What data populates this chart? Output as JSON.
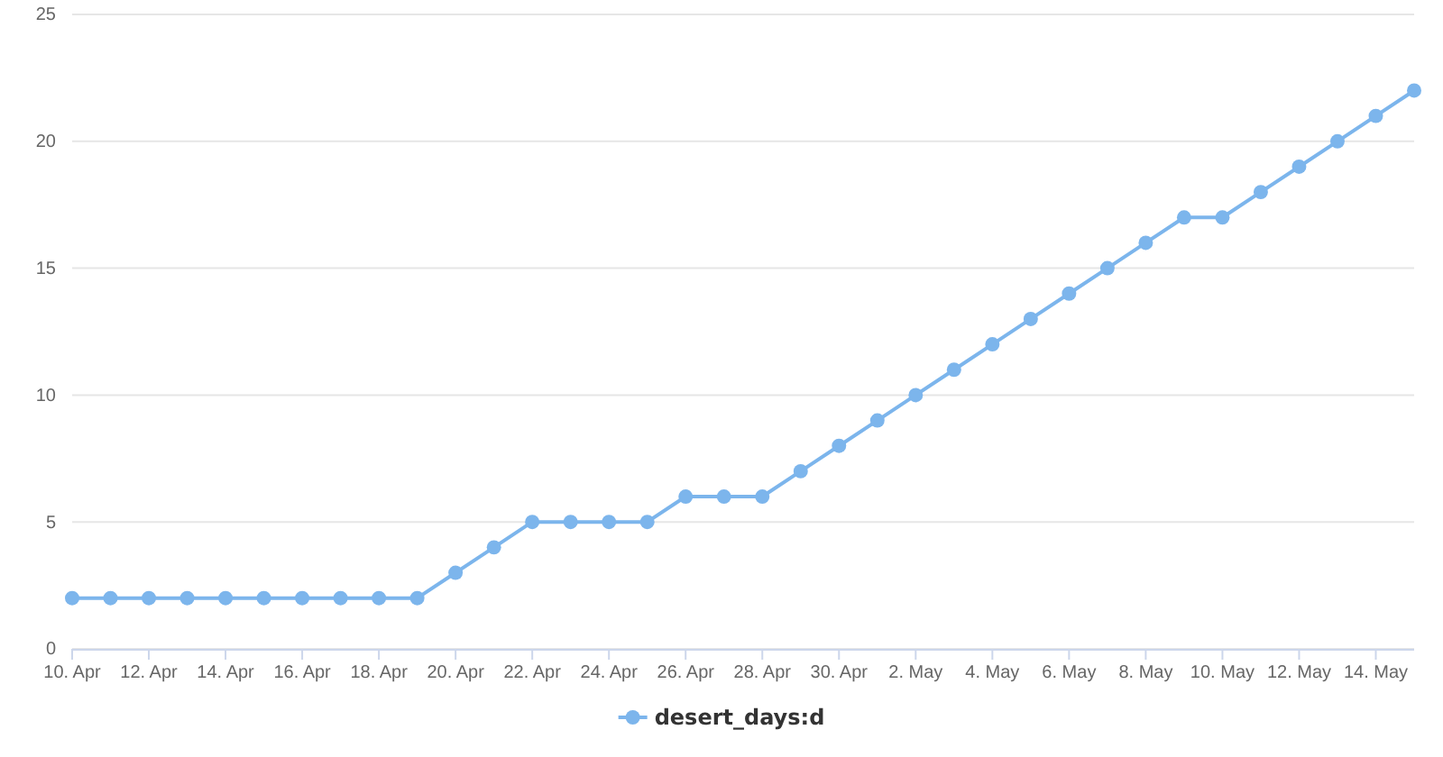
{
  "chart_data": {
    "type": "line",
    "x": [
      "--04-10",
      "--04-11",
      "--04-12",
      "--04-13",
      "--04-14",
      "--04-15",
      "--04-16",
      "--04-17",
      "--04-18",
      "--04-19",
      "--04-20",
      "--04-21",
      "--04-22",
      "--04-23",
      "--04-24",
      "--04-25",
      "--04-26",
      "--04-27",
      "--04-28",
      "--04-29",
      "--04-30",
      "--05-01",
      "--05-02",
      "--05-03",
      "--05-04",
      "--05-05",
      "--05-06",
      "--05-07",
      "--05-08",
      "--05-09",
      "--05-10",
      "--05-11",
      "--05-12",
      "--05-13",
      "--05-14",
      "--05-15"
    ],
    "series": [
      {
        "name": "desert_days:d",
        "color": "#7cb5ec",
        "values": [
          2,
          2,
          2,
          2,
          2,
          2,
          2,
          2,
          2,
          2,
          3,
          4,
          5,
          5,
          5,
          5,
          6,
          6,
          6,
          7,
          8,
          9,
          10,
          11,
          12,
          13,
          14,
          15,
          16,
          17,
          17,
          18,
          19,
          20,
          21,
          22
        ]
      }
    ],
    "xlim": [
      "--04-10",
      "--05-15"
    ],
    "xticks": [
      {
        "value": "--04-10",
        "label": "10. Apr"
      },
      {
        "value": "--04-12",
        "label": "12. Apr"
      },
      {
        "value": "--04-14",
        "label": "14. Apr"
      },
      {
        "value": "--04-16",
        "label": "16. Apr"
      },
      {
        "value": "--04-18",
        "label": "18. Apr"
      },
      {
        "value": "--04-20",
        "label": "20. Apr"
      },
      {
        "value": "--04-22",
        "label": "22. Apr"
      },
      {
        "value": "--04-24",
        "label": "24. Apr"
      },
      {
        "value": "--04-26",
        "label": "26. Apr"
      },
      {
        "value": "--04-28",
        "label": "28. Apr"
      },
      {
        "value": "--04-30",
        "label": "30. Apr"
      },
      {
        "value": "--05-02",
        "label": "2. May"
      },
      {
        "value": "--05-04",
        "label": "4. May"
      },
      {
        "value": "--05-06",
        "label": "6. May"
      },
      {
        "value": "--05-08",
        "label": "8. May"
      },
      {
        "value": "--05-10",
        "label": "10. May"
      },
      {
        "value": "--05-12",
        "label": "12. May"
      },
      {
        "value": "--05-14",
        "label": "14. May"
      }
    ],
    "ylim": [
      0,
      25
    ],
    "yticks": [
      0,
      5,
      10,
      15,
      20,
      25
    ],
    "grid": "y",
    "legend": "bottom",
    "marker": "circle",
    "line_style": "solid"
  }
}
